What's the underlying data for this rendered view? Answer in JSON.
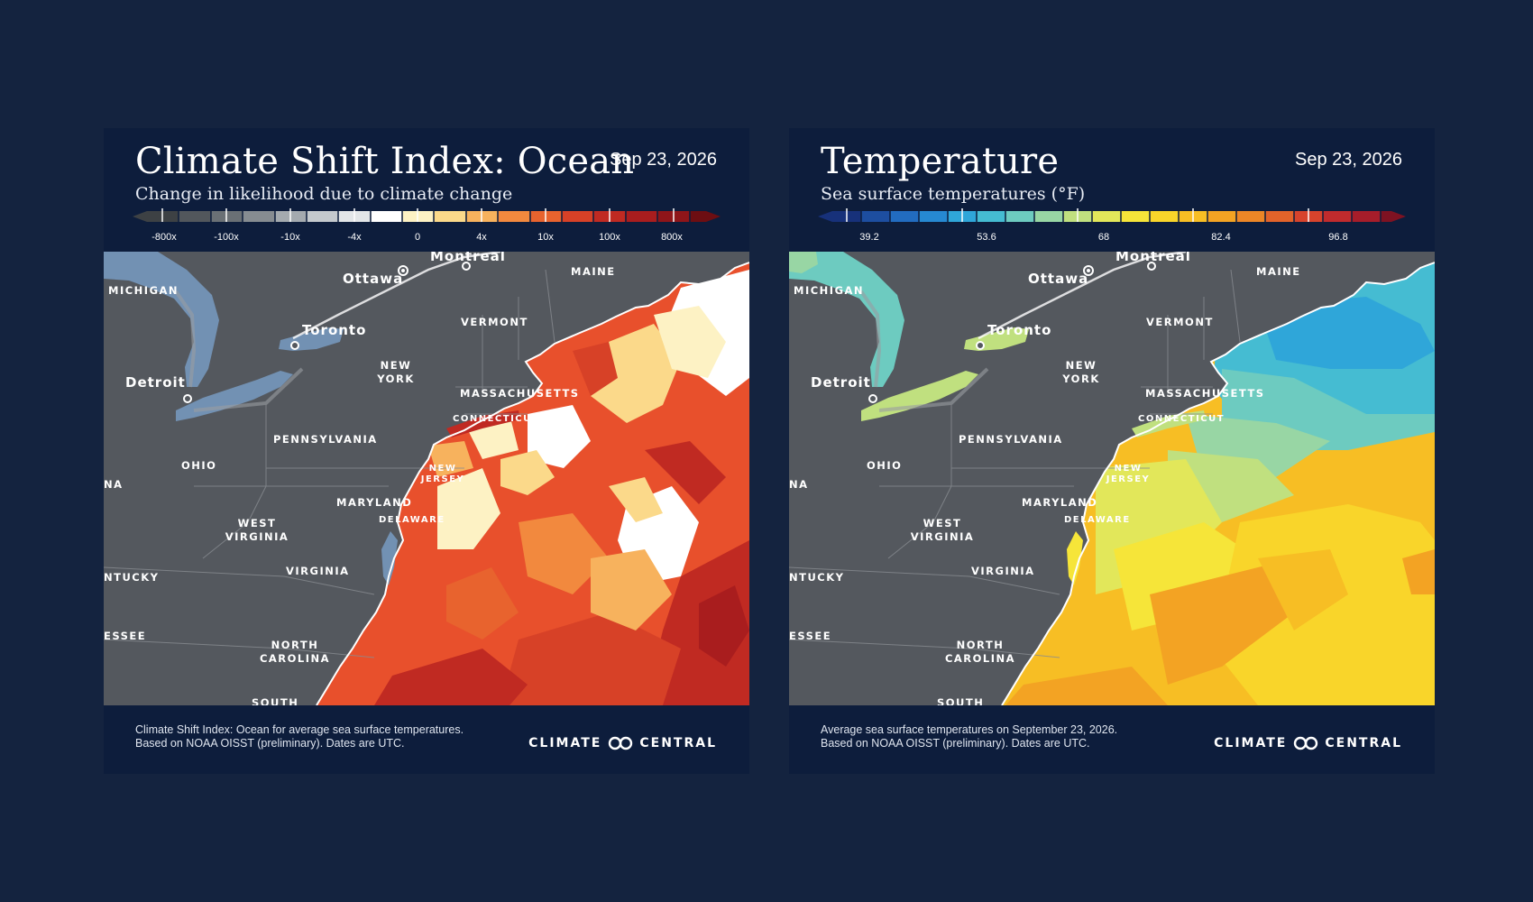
{
  "panels": [
    {
      "title": "Climate Shift Index: Ocean",
      "subtitle": "Change in likelihood due to climate change",
      "date": "Sep 23, 2026",
      "legend": {
        "labels": [
          "-800x",
          "-100x",
          "-10x",
          "-4x",
          "0",
          "4x",
          "10x",
          "100x",
          "800x"
        ],
        "colors": [
          "#3d4144",
          "#52575c",
          "#6a7075",
          "#868c91",
          "#a4aaaf",
          "#c4c9cd",
          "#e3e6e8",
          "#ffffff",
          "#fdf2c4",
          "#fbd98a",
          "#f7b25d",
          "#f2893e",
          "#e8632e",
          "#d74127",
          "#c02a22",
          "#a91d1e",
          "#8f1519",
          "#6d0e12"
        ]
      },
      "map": {
        "places": {
          "michigan": "MICHIGAN",
          "ottawa": "Ottawa",
          "montreal": "Montreal",
          "maine": "MAINE",
          "vermont": "VERMONT",
          "toronto": "Toronto",
          "new_york": [
            "NEW",
            "YORK"
          ],
          "detroit": "Detroit",
          "massachusetts": "MASSACHUSETTS",
          "connecticut": "CONNECTICUT",
          "pennsylvania": "PENNSYLVANIA",
          "new_jersey": [
            "NEW",
            "JERSEY"
          ],
          "ohio": "OHIO",
          "indiana_fragment": "NA",
          "maryland": "MARYLAND",
          "delaware": "DELAWARE",
          "west_virginia": [
            "WEST",
            "VIRGINIA"
          ],
          "virginia": "VIRGINIA",
          "kentucky_fragment": "NTUCKY",
          "tennessee_fragment": "ESSEE",
          "north_carolina": [
            "NORTH",
            "CAROLINA"
          ],
          "south_fragment": "SOUTH"
        }
      },
      "footer": {
        "line1": "Climate Shift Index: Ocean for average sea surface temperatures.",
        "line2": "Based on NOAA OISST (preliminary). Dates are UTC."
      },
      "brand": {
        "left": "CLIMATE",
        "right": "CENTRAL"
      }
    },
    {
      "title": "Temperature",
      "subtitle": "Sea surface temperatures (°F)",
      "date": "Sep 23, 2026",
      "legend": {
        "labels": [
          "39.2",
          "53.6",
          "68",
          "82.4",
          "96.8"
        ],
        "colors": [
          "#17317a",
          "#1d4ea0",
          "#226cc0",
          "#2689d2",
          "#2fa6d9",
          "#45bcd2",
          "#6dcbc0",
          "#98d6a4",
          "#c0e07f",
          "#e2e75a",
          "#f6e539",
          "#f9d52a",
          "#f7be24",
          "#f3a323",
          "#ec8626",
          "#e2632a",
          "#d7432c",
          "#c12b2d",
          "#a61d2a",
          "#7e1222"
        ]
      },
      "map": {
        "places": {
          "michigan": "MICHIGAN",
          "ottawa": "Ottawa",
          "montreal": "Montreal",
          "maine": "MAINE",
          "vermont": "VERMONT",
          "toronto": "Toronto",
          "new_york": [
            "NEW",
            "YORK"
          ],
          "detroit": "Detroit",
          "massachusetts": "MASSACHUSETTS",
          "connecticut": "CONNECTICUT",
          "pennsylvania": "PENNSYLVANIA",
          "new_jersey": [
            "NEW",
            "JERSEY"
          ],
          "ohio": "OHIO",
          "indiana_fragment": "NA",
          "maryland": "MARYLAND",
          "delaware": "DELAWARE",
          "west_virginia": [
            "WEST",
            "VIRGINIA"
          ],
          "virginia": "VIRGINIA",
          "kentucky_fragment": "NTUCKY",
          "tennessee_fragment": "ESSEE",
          "north_carolina": [
            "NORTH",
            "CAROLINA"
          ],
          "south_fragment": "SOUTH"
        }
      },
      "footer": {
        "line1": "Average sea surface temperatures on September 23, 2026.",
        "line2": "Based on NOAA OISST (preliminary). Dates are UTC."
      },
      "brand": {
        "left": "CLIMATE",
        "right": "CENTRAL"
      }
    }
  ]
}
